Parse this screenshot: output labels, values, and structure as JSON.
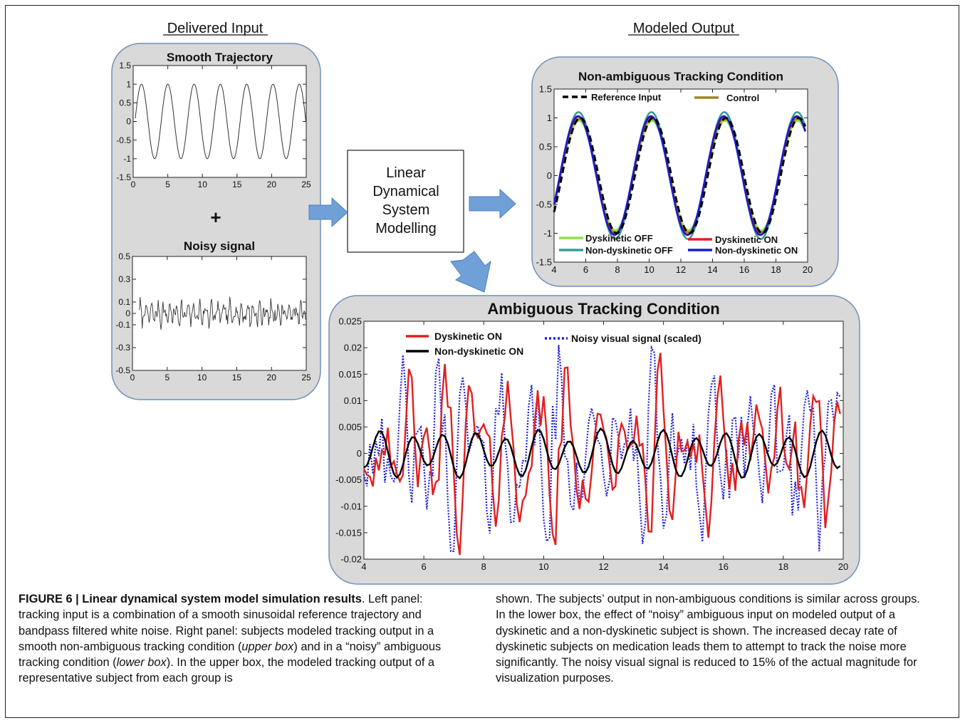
{
  "headings": {
    "delivered_input": "Delivered Input",
    "modeled_output": "Modeled Output"
  },
  "model_box": {
    "line1": "Linear",
    "line2": "Dynamical",
    "line3": "System",
    "line4": "Modelling"
  },
  "plus": "+",
  "colors": {
    "panel_fill": "#d9d9d9",
    "panel_border": "#6f8fb8",
    "arrow_fill": "#6fa0d8",
    "reference": "#000000",
    "control": "#a08620",
    "dysk_off": "#8ee04a",
    "nondysk_off": "#3a9a9a",
    "dysk_on": "#e02020",
    "nondysk_on": "#1a1acc",
    "amb_dysk_on": "#e02020",
    "amb_nondysk_on": "#000000",
    "amb_noise": "#2020dd"
  },
  "chart_data": [
    {
      "type": "line",
      "title": "Smooth Trajectory",
      "xlim": [
        0,
        25
      ],
      "ylim": [
        -1.5,
        1.5
      ],
      "xticks": [
        "0",
        "5",
        "10",
        "15",
        "20",
        "25"
      ],
      "yticks": [
        "1.5",
        "1",
        "0.5",
        "0",
        "-0.5",
        "-1",
        "-1.5"
      ],
      "series": [
        {
          "function": "sine",
          "amplitude": 1,
          "period": 3.8,
          "x_start": 0.3,
          "x_end": 25
        }
      ]
    },
    {
      "type": "line",
      "title": "Noisy signal",
      "xlim": [
        0,
        25
      ],
      "ylim": [
        -0.5,
        0.5
      ],
      "xticks": [
        "0",
        "5",
        "10",
        "15",
        "20",
        "25"
      ],
      "yticks": [
        "0.5",
        "0.3",
        "0.1",
        "0",
        "-0.1",
        "-0.3",
        "-0.5"
      ],
      "series": [
        {
          "function": "bandpass noise",
          "amplitude_approx": 0.1,
          "x_start": 1,
          "x_end": 25
        }
      ]
    },
    {
      "type": "line",
      "title": "Non-ambiguous Tracking Condition",
      "xlim": [
        4,
        20
      ],
      "ylim": [
        -1.5,
        1.5
      ],
      "xticks": [
        "4",
        "6",
        "8",
        "10",
        "12",
        "14",
        "16",
        "18",
        "20"
      ],
      "yticks": [
        "1.5",
        "1",
        "0.5",
        "0",
        "-0.5",
        "-1",
        "-1.5"
      ],
      "series": [
        {
          "name": "Reference Input",
          "style": "dashed",
          "color": "#000000",
          "amplitude": 1.0,
          "period": 4.6,
          "phase": 0.0
        },
        {
          "name": "Control",
          "style": "solid",
          "color": "#a08620",
          "amplitude": 0.98,
          "period": 4.6,
          "phase": -0.3
        },
        {
          "name": "Dyskinetic OFF",
          "style": "solid",
          "color": "#8ee04a",
          "amplitude": 0.95,
          "period": 4.6,
          "phase": -0.25
        },
        {
          "name": "Non-dyskinetic OFF",
          "style": "solid",
          "color": "#3a9a9a",
          "amplitude": 1.1,
          "period": 4.6,
          "phase": -0.35
        },
        {
          "name": "Dyskinetic ON",
          "style": "solid",
          "color": "#e02020",
          "amplitude": 1.02,
          "period": 4.6,
          "phase": -0.4
        },
        {
          "name": "Non-dyskinetic ON",
          "style": "solid",
          "color": "#1a1acc",
          "amplitude": 1.03,
          "period": 4.6,
          "phase": -0.45
        }
      ]
    },
    {
      "type": "line",
      "title": "Ambiguous Tracking Condition",
      "xlim": [
        4,
        20
      ],
      "ylim": [
        -0.02,
        0.025
      ],
      "xticks": [
        "4",
        "6",
        "8",
        "10",
        "12",
        "14",
        "16",
        "18",
        "20"
      ],
      "yticks": [
        "0.025",
        "0.02",
        "0.015",
        "0.01",
        "0.005",
        "0",
        "-0.005",
        "-0.01",
        "-0.015",
        "-0.02"
      ],
      "series": [
        {
          "name": "Dyskinetic ON",
          "style": "solid",
          "color": "#e02020",
          "amplitude_approx": 0.012
        },
        {
          "name": "Non-dyskinetic ON",
          "style": "solid",
          "color": "#000000",
          "amplitude_approx": 0.004
        },
        {
          "name": "Noisy visual signal (scaled)",
          "style": "dotted",
          "color": "#2020dd",
          "amplitude_approx": 0.014
        }
      ]
    }
  ],
  "caption": {
    "label": "FIGURE 6 | Linear dynamical system model simulation results",
    "t1": ". Left panel: tracking input is a combination of a smooth sinusoidal reference trajectory and bandpass filtered white noise. Right panel: subjects modeled tracking output in a smooth non-ambiguous tracking condition (",
    "i1": "upper box",
    "t2": ") and in a “noisy” ambiguous tracking condition (",
    "i2": "lower box",
    "t3": "). In the upper box, the modeled tracking output of a representative subject from each group is",
    "t4": "shown. The subjects’ output in non-ambiguous conditions is similar across groups. In the lower box, the effect of “noisy” ambiguous input on modeled output of a dyskinetic and a non-dyskinetic subject is shown. The increased decay rate of dyskinetic subjects on medication leads them to attempt to track the noise more significantly. The noisy visual signal is reduced to 15% of the actual magnitude for visualization purposes."
  }
}
